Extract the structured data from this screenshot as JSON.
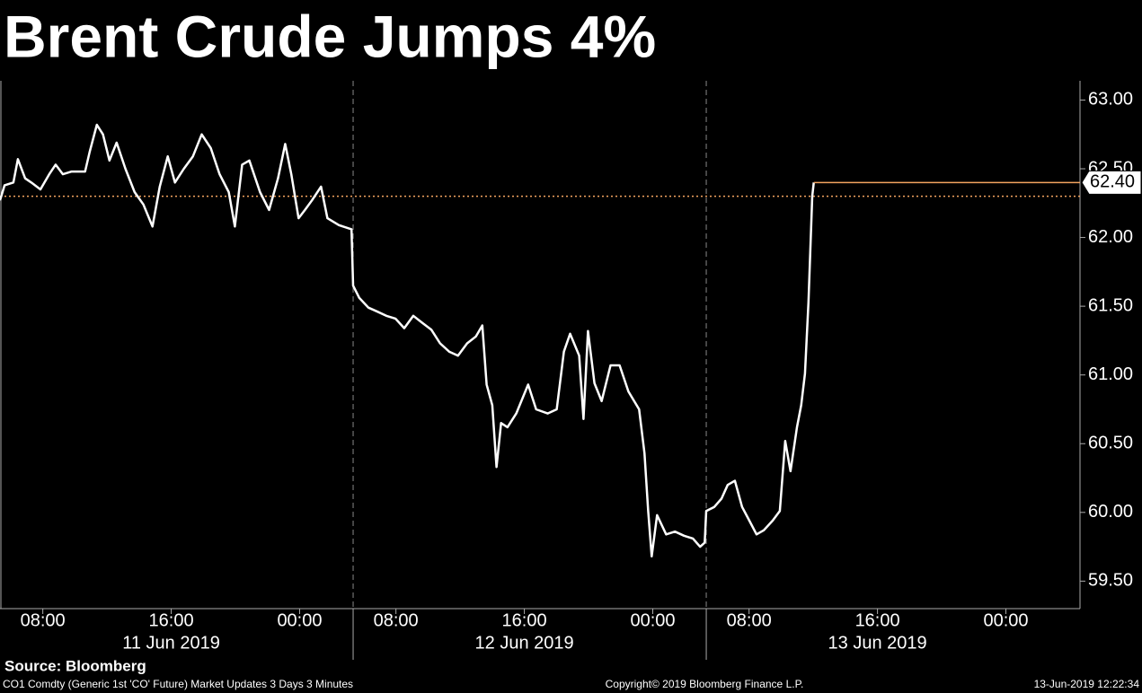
{
  "chart_data": {
    "type": "line",
    "title": "Brent Crude Jumps 4%",
    "source": "Source: Bloomberg",
    "footer_left": "CO1 Comdty (Generic 1st 'CO' Future) Market Updates 3 Days 3 Minutes",
    "footer_center": "Copyright© 2019 Bloomberg Finance L.P.",
    "footer_right": "13-Jun-2019 12:22:34",
    "color": "#ffffff",
    "x": [
      "2019-06-11 05:20",
      "2019-06-11 05:37",
      "2019-06-11 06:10",
      "2019-06-11 06:27",
      "2019-06-11 06:54",
      "2019-06-11 07:17",
      "2019-06-11 07:51",
      "2019-06-11 08:24",
      "2019-06-11 08:48",
      "2019-06-11 09:15",
      "2019-06-11 09:48",
      "2019-06-11 10:38",
      "2019-06-11 10:55",
      "2019-06-11 11:22",
      "2019-06-11 11:45",
      "2019-06-11 12:09",
      "2019-06-11 12:36",
      "2019-06-11 13:09",
      "2019-06-11 13:43",
      "2019-06-11 14:16",
      "2019-06-11 14:50",
      "2019-06-11 15:17",
      "2019-06-11 15:47",
      "2019-06-11 16:14",
      "2019-06-11 16:47",
      "2019-06-11 17:21",
      "2019-06-11 17:54",
      "2019-06-11 18:28",
      "2019-06-11 19:01",
      "2019-06-11 19:35",
      "2019-06-11 19:58",
      "2019-06-11 20:25",
      "2019-06-11 20:52",
      "2019-06-11 21:32",
      "2019-06-11 22:06",
      "2019-06-11 22:39",
      "2019-06-11 23:06",
      "2019-06-11 23:29",
      "2019-06-11 23:56",
      "2019-06-12 00:20",
      "2019-06-12 00:46",
      "2019-06-12 01:20",
      "2019-06-12 01:44",
      "2019-06-12 02:27",
      "2019-06-12 03:14",
      "2019-06-12 05:20",
      "2019-06-12 05:43",
      "2019-06-12 06:17",
      "2019-06-12 06:51",
      "2019-06-12 07:24",
      "2019-06-12 07:58",
      "2019-06-12 08:31",
      "2019-06-12 09:05",
      "2019-06-12 09:38",
      "2019-06-12 10:12",
      "2019-06-12 10:45",
      "2019-06-12 11:19",
      "2019-06-12 11:52",
      "2019-06-12 12:26",
      "2019-06-12 12:59",
      "2019-06-12 13:23",
      "2019-06-12 13:39",
      "2019-06-12 14:00",
      "2019-06-12 14:16",
      "2019-06-12 14:33",
      "2019-06-12 14:57",
      "2019-06-12 15:30",
      "2019-06-12 16:14",
      "2019-06-12 16:44",
      "2019-06-12 17:27",
      "2019-06-12 18:01",
      "2019-06-12 18:28",
      "2019-06-12 18:51",
      "2019-06-12 19:25",
      "2019-06-12 19:41",
      "2019-06-12 19:58",
      "2019-06-12 20:22",
      "2019-06-12 20:49",
      "2019-06-12 21:22",
      "2019-06-12 21:56",
      "2019-06-12 22:29",
      "2019-06-12 23:09",
      "2019-06-12 23:29",
      "2019-06-12 23:43",
      "2019-06-12 23:56",
      "2019-06-13 00:16",
      "2019-06-13 00:50",
      "2019-06-13 01:23",
      "2019-06-13 01:57",
      "2019-06-13 02:30",
      "2019-06-13 02:57",
      "2019-06-13 03:14",
      "2019-06-13 05:20",
      "2019-06-13 05:50",
      "2019-06-13 06:17",
      "2019-06-13 06:40",
      "2019-06-13 07:07",
      "2019-06-13 07:34",
      "2019-06-13 08:01",
      "2019-06-13 08:28",
      "2019-06-13 08:55",
      "2019-06-13 09:28",
      "2019-06-13 09:55",
      "2019-06-13 10:15",
      "2019-06-13 10:35",
      "2019-06-13 10:59",
      "2019-06-13 11:15",
      "2019-06-13 11:29",
      "2019-06-13 11:42",
      "2019-06-13 11:56",
      "2019-06-13 12:02"
    ],
    "values": [
      62.27,
      62.38,
      62.4,
      62.57,
      62.43,
      62.4,
      62.35,
      62.46,
      62.53,
      62.46,
      62.48,
      62.48,
      62.62,
      62.82,
      62.75,
      62.56,
      62.69,
      62.5,
      62.33,
      62.24,
      62.08,
      62.37,
      62.59,
      62.4,
      62.5,
      62.59,
      62.75,
      62.65,
      62.46,
      62.33,
      62.08,
      62.53,
      62.56,
      62.33,
      62.2,
      62.43,
      62.68,
      62.46,
      62.14,
      62.2,
      62.27,
      62.37,
      62.14,
      62.09,
      62.06,
      61.65,
      61.56,
      61.49,
      61.46,
      61.43,
      61.41,
      61.34,
      61.43,
      61.38,
      61.33,
      61.23,
      61.17,
      61.14,
      61.23,
      61.28,
      61.36,
      60.93,
      60.78,
      60.33,
      60.65,
      60.62,
      60.72,
      60.93,
      60.75,
      60.72,
      60.75,
      61.17,
      61.3,
      61.14,
      60.68,
      61.32,
      60.94,
      60.81,
      61.07,
      61.07,
      60.88,
      60.75,
      60.43,
      60.01,
      59.68,
      59.98,
      59.84,
      59.86,
      59.83,
      59.81,
      59.75,
      59.78,
      60.01,
      60.04,
      60.1,
      60.2,
      60.23,
      60.04,
      59.94,
      59.84,
      59.87,
      59.94,
      60.01,
      60.52,
      60.3,
      60.62,
      60.78,
      61.01,
      61.53,
      62.3,
      62.4
    ],
    "xlim": [
      "2019-06-11 05:20",
      "2019-06-14 04:37"
    ],
    "session_breaks": [
      {
        "from": "2019-06-12 03:20",
        "to": "2019-06-12 05:20"
      },
      {
        "from": "2019-06-13 03:20",
        "to": "2019-06-13 05:20"
      }
    ],
    "xticks": [
      {
        "value": "2019-06-11 08:00",
        "label": "08:00"
      },
      {
        "value": "2019-06-11 16:00",
        "label": "16:00"
      },
      {
        "value": "2019-06-12 00:00",
        "label": "00:00"
      },
      {
        "value": "2019-06-12 08:00",
        "label": "08:00"
      },
      {
        "value": "2019-06-12 16:00",
        "label": "16:00"
      },
      {
        "value": "2019-06-13 00:00",
        "label": "00:00"
      },
      {
        "value": "2019-06-13 08:00",
        "label": "08:00"
      },
      {
        "value": "2019-06-13 16:00",
        "label": "16:00"
      },
      {
        "value": "2019-06-14 00:00",
        "label": "00:00"
      }
    ],
    "day_labels": [
      {
        "value": "2019-06-11 16:00",
        "label": "11 Jun 2019"
      },
      {
        "value": "2019-06-12 16:00",
        "label": "12 Jun 2019"
      },
      {
        "value": "2019-06-13 16:00",
        "label": "13 Jun 2019"
      }
    ],
    "ylim": [
      59.3,
      63.14
    ],
    "yticks": [
      {
        "value": 59.5,
        "label": "59.50"
      },
      {
        "value": 60,
        "label": "60.00"
      },
      {
        "value": 60.5,
        "label": "60.50"
      },
      {
        "value": 61,
        "label": "61.00"
      },
      {
        "value": 61.5,
        "label": "61.50"
      },
      {
        "value": 62,
        "label": "62.00"
      },
      {
        "value": 62.5,
        "label": "62.50"
      },
      {
        "value": 63,
        "label": "63.00"
      }
    ],
    "reference_line": {
      "value": 62.3,
      "color": "#f4a460"
    },
    "last_price": {
      "value": 62.4,
      "label": "62.40",
      "color": "#f4a460"
    }
  }
}
